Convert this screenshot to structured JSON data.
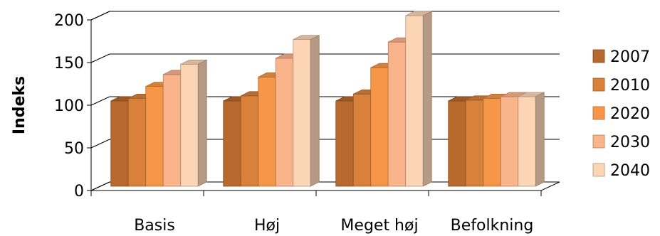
{
  "chart_data": {
    "type": "bar",
    "title": "",
    "xlabel": "",
    "ylabel": "Indeks",
    "ylim": [
      0,
      200
    ],
    "yticks": [
      "0",
      "50",
      "100",
      "150",
      "200"
    ],
    "grid": true,
    "legend_position": "right",
    "categories": [
      "Basis",
      "Høj",
      "Meget høj",
      "Befolkning"
    ],
    "series": [
      {
        "name": "2007",
        "color": "#b8692e",
        "values": [
          100,
          100,
          100,
          100
        ]
      },
      {
        "name": "2010",
        "color": "#d9803a",
        "values": [
          103,
          106,
          108,
          101
        ]
      },
      {
        "name": "2020",
        "color": "#f79646",
        "values": [
          117,
          128,
          139,
          103
        ]
      },
      {
        "name": "2030",
        "color": "#fab48c",
        "values": [
          131,
          150,
          169,
          105
        ]
      },
      {
        "name": "2040",
        "color": "#fcd5b5",
        "values": [
          143,
          172,
          200,
          105
        ]
      }
    ]
  }
}
